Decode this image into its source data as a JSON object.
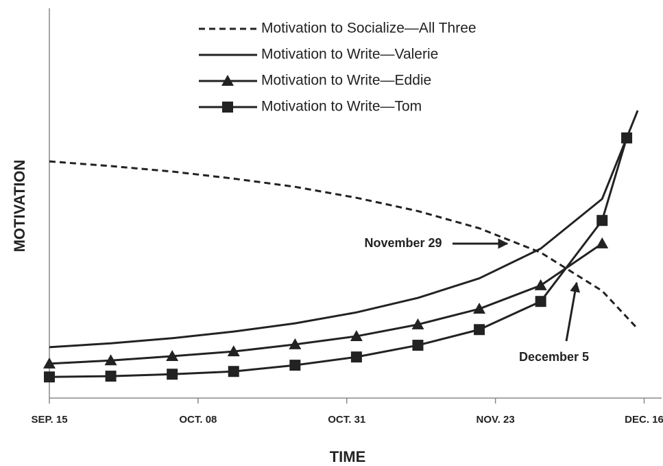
{
  "chart_data": {
    "type": "line",
    "xlabel": "TIME",
    "ylabel": "MOTIVATION",
    "xlim": [
      0,
      95
    ],
    "ylim": [
      0,
      100
    ],
    "xticks": [
      {
        "value": 0,
        "label": "SEP. 15"
      },
      {
        "value": 23,
        "label": "OCT. 08"
      },
      {
        "value": 46,
        "label": "OCT. 31"
      },
      {
        "value": 69,
        "label": "NOV. 23"
      },
      {
        "value": 92,
        "label": "DEC. 16"
      }
    ],
    "series": [
      {
        "name": "Motivation to Socialize—All Three",
        "color": "#222222",
        "dash": true,
        "marker": "none",
        "x": [
          0,
          9.5,
          19,
          28.5,
          38,
          47.5,
          57,
          66.5,
          76,
          85.5,
          91
        ],
        "values": [
          60.5,
          59.3,
          57.9,
          56.1,
          54.0,
          51.2,
          47.8,
          43.4,
          37.2,
          27.4,
          17.7
        ]
      },
      {
        "name": "Motivation to Write—Valerie",
        "color": "#222222",
        "dash": false,
        "marker": "none",
        "x": [
          0,
          9.5,
          19,
          28.5,
          38,
          47.5,
          57,
          66.5,
          76,
          85.5,
          91
        ],
        "values": [
          13.0,
          14.0,
          15.3,
          17.0,
          19.1,
          21.9,
          25.6,
          30.6,
          38.2,
          50.9,
          73.5
        ]
      },
      {
        "name": "Motivation to Write—Eddie",
        "color": "#222222",
        "dash": false,
        "marker": "triangle",
        "x": [
          0,
          9.5,
          19,
          28.5,
          38,
          47.5,
          57,
          66.5,
          76,
          85.5
        ],
        "values": [
          8.8,
          9.6,
          10.7,
          11.9,
          13.7,
          15.8,
          18.8,
          22.8,
          28.8,
          39.5
        ]
      },
      {
        "name": "Motivation to Write—Tom",
        "color": "#222222",
        "dash": false,
        "marker": "square",
        "x": [
          0,
          9.5,
          19,
          28.5,
          38,
          47.5,
          57,
          66.5,
          76,
          85.5,
          89.3
        ],
        "values": [
          5.4,
          5.6,
          6.1,
          6.8,
          8.4,
          10.5,
          13.5,
          17.5,
          24.7,
          45.4,
          66.5
        ]
      }
    ],
    "annotations": [
      "November 29",
      "December 5"
    ]
  }
}
